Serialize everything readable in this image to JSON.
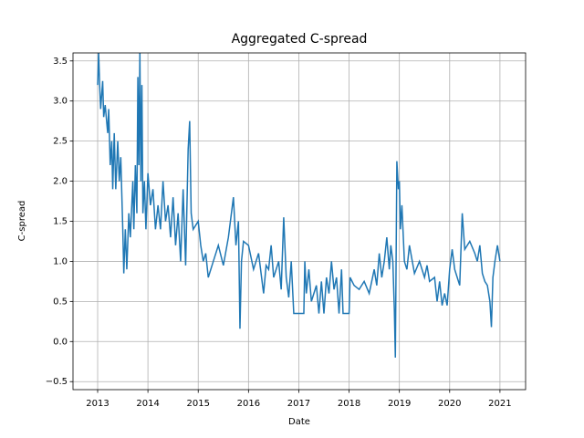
{
  "chart_data": {
    "type": "line",
    "title": "Aggregated C-spread",
    "xlabel": "Date",
    "ylabel": "C-spread",
    "x": [
      2013.0,
      2013.02,
      2013.04,
      2013.06,
      2013.1,
      2013.12,
      2013.15,
      2013.2,
      2013.22,
      2013.25,
      2013.28,
      2013.3,
      2013.33,
      2013.36,
      2013.4,
      2013.43,
      2013.46,
      2013.5,
      2013.52,
      2013.55,
      2013.58,
      2013.62,
      2013.65,
      2013.7,
      2013.72,
      2013.75,
      2013.78,
      2013.8,
      2013.82,
      2013.84,
      2013.86,
      2013.88,
      2013.9,
      2013.93,
      2013.96,
      2014.0,
      2014.05,
      2014.1,
      2014.15,
      2014.2,
      2014.25,
      2014.3,
      2014.35,
      2014.4,
      2014.45,
      2014.5,
      2014.55,
      2014.6,
      2014.65,
      2014.7,
      2014.75,
      2014.8,
      2014.83,
      2014.86,
      2014.9,
      2015.0,
      2015.05,
      2015.1,
      2015.15,
      2015.2,
      2015.3,
      2015.4,
      2015.5,
      2015.6,
      2015.7,
      2015.75,
      2015.8,
      2015.83,
      2015.86,
      2015.9,
      2016.0,
      2016.1,
      2016.2,
      2016.3,
      2016.35,
      2016.4,
      2016.45,
      2016.5,
      2016.6,
      2016.65,
      2016.7,
      2016.75,
      2016.8,
      2016.85,
      2016.9,
      2017.1,
      2017.12,
      2017.15,
      2017.2,
      2017.25,
      2017.35,
      2017.4,
      2017.45,
      2017.5,
      2017.55,
      2017.6,
      2017.65,
      2017.7,
      2017.75,
      2017.8,
      2017.85,
      2017.88,
      2018.0,
      2018.02,
      2018.1,
      2018.2,
      2018.3,
      2018.4,
      2018.5,
      2018.55,
      2018.6,
      2018.65,
      2018.7,
      2018.75,
      2018.8,
      2018.83,
      2018.87,
      2018.9,
      2018.92,
      2018.95,
      2018.98,
      2019.0,
      2019.02,
      2019.05,
      2019.1,
      2019.15,
      2019.2,
      2019.3,
      2019.4,
      2019.5,
      2019.55,
      2019.6,
      2019.7,
      2019.75,
      2019.8,
      2019.85,
      2019.9,
      2019.95,
      2020.0,
      2020.05,
      2020.1,
      2020.2,
      2020.25,
      2020.3,
      2020.4,
      2020.5,
      2020.55,
      2020.6,
      2020.65,
      2020.7,
      2020.75,
      2020.8,
      2020.83,
      2020.86,
      2020.9,
      2020.95,
      2021.0
    ],
    "series": [
      {
        "name": "C-spread",
        "color": "#1f77b4",
        "values": [
          3.2,
          3.6,
          3.2,
          2.9,
          3.25,
          2.8,
          2.95,
          2.6,
          2.9,
          2.2,
          2.5,
          1.9,
          2.6,
          1.9,
          2.5,
          2.0,
          2.3,
          1.4,
          0.85,
          1.4,
          0.9,
          1.6,
          1.3,
          2.0,
          1.4,
          2.2,
          1.6,
          3.3,
          2.2,
          3.6,
          2.0,
          3.2,
          1.6,
          2.0,
          1.4,
          2.1,
          1.7,
          1.9,
          1.4,
          1.7,
          1.4,
          2.0,
          1.5,
          1.7,
          1.3,
          1.8,
          1.2,
          1.6,
          1.0,
          1.9,
          0.95,
          2.4,
          2.75,
          1.6,
          1.4,
          1.5,
          1.2,
          1.0,
          1.1,
          0.8,
          1.0,
          1.2,
          0.95,
          1.3,
          1.8,
          1.2,
          1.5,
          0.16,
          1.0,
          1.25,
          1.2,
          0.9,
          1.1,
          0.6,
          0.95,
          0.9,
          1.2,
          0.8,
          1.0,
          0.65,
          1.55,
          0.8,
          0.55,
          1.0,
          0.35,
          0.35,
          1.0,
          0.6,
          0.9,
          0.5,
          0.7,
          0.35,
          0.75,
          0.35,
          0.8,
          0.6,
          1.0,
          0.65,
          0.8,
          0.35,
          0.9,
          0.35,
          0.35,
          0.8,
          0.7,
          0.65,
          0.75,
          0.6,
          0.9,
          0.7,
          1.1,
          0.8,
          1.0,
          1.3,
          0.9,
          1.2,
          1.0,
          0.4,
          -0.2,
          2.25,
          1.9,
          2.0,
          1.4,
          1.7,
          1.0,
          0.9,
          1.2,
          0.85,
          1.0,
          0.8,
          0.95,
          0.75,
          0.8,
          0.5,
          0.75,
          0.45,
          0.6,
          0.45,
          0.9,
          1.15,
          0.9,
          0.7,
          1.6,
          1.15,
          1.25,
          1.1,
          1.0,
          1.2,
          0.85,
          0.75,
          0.7,
          0.5,
          0.18,
          0.8,
          1.0,
          1.2,
          1.0
        ]
      }
    ],
    "xlim": [
      2012.51,
      2021.51
    ],
    "xticks": [
      2013,
      2014,
      2015,
      2016,
      2017,
      2018,
      2019,
      2020,
      2021
    ],
    "ylim": [
      -0.6,
      3.6
    ],
    "yticks": [
      {
        "value": -0.5,
        "label": "−0.5"
      },
      {
        "value": 0,
        "label": "0.0"
      },
      0.5,
      {
        "value": 1,
        "label": "1.0"
      },
      1.5,
      {
        "value": 2,
        "label": "2.0"
      },
      2.5,
      {
        "value": 3,
        "label": "3.0"
      },
      3.5
    ],
    "grid": true
  }
}
